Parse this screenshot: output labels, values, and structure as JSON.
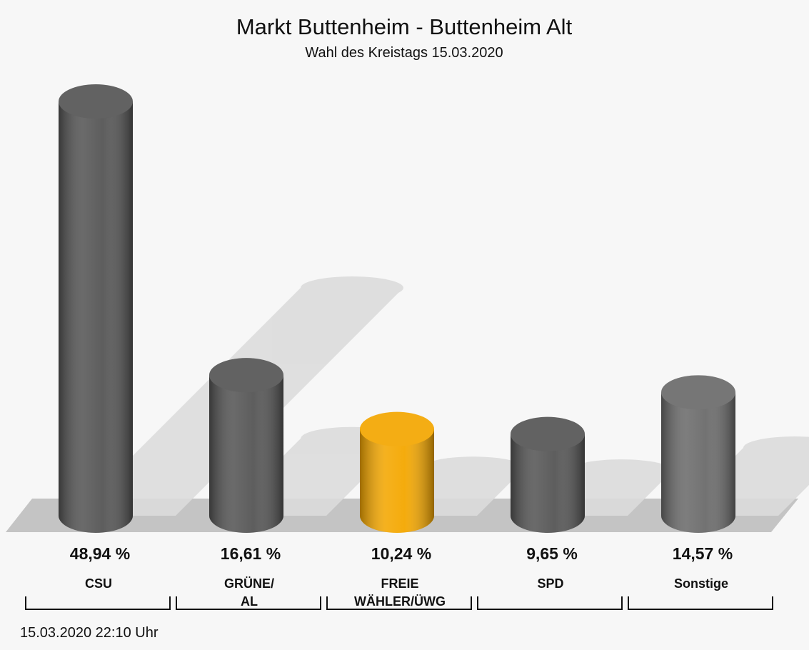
{
  "chart_data": {
    "type": "bar",
    "title": "Markt Buttenheim - Buttenheim Alt",
    "subtitle": "Wahl des Kreistags 15.03.2020",
    "categories": [
      "CSU",
      "GRÜNE/\nAL",
      "FREIE\nWÄHLER/ÜWG",
      "SPD",
      "Sonstige"
    ],
    "values": [
      48.94,
      16.61,
      10.24,
      9.65,
      14.57
    ],
    "value_labels": [
      "48,94 %",
      "16,61 %",
      "10,24 %",
      "9,65 %",
      "14,57 %"
    ],
    "colors": [
      "#555555",
      "#555555",
      "#f4a700",
      "#555555",
      "#6b6b6b"
    ],
    "footer": "15.03.2020 22:10 Uhr"
  }
}
